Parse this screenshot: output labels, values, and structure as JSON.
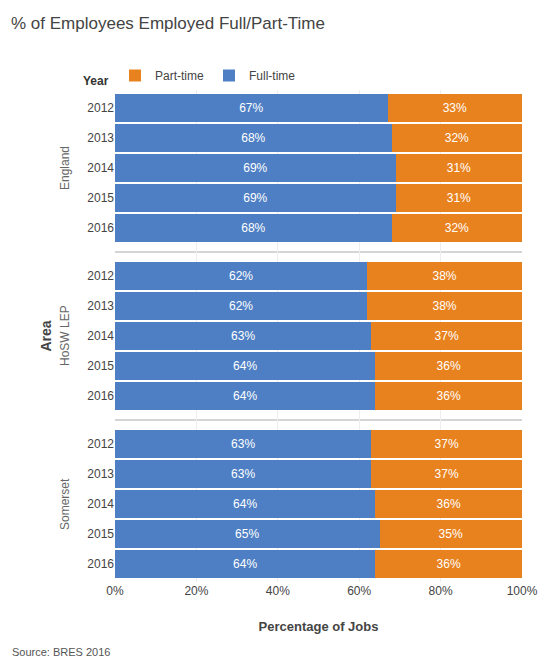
{
  "chart_data": {
    "type": "bar",
    "orientation": "horizontal",
    "stacked": true,
    "data_labels": true,
    "grid": true,
    "legend": "upper left",
    "title": "% of Employees Employed Full/Part-Time",
    "xlabel": "Percentage of Jobs",
    "ylabel": "Area",
    "annotations": [
      "Year",
      "Source: BRES 2016"
    ],
    "categories": [
      [
        "England",
        "2012"
      ],
      [
        "England",
        "2013"
      ],
      [
        "England",
        "2014"
      ],
      [
        "England",
        "2015"
      ],
      [
        "England",
        "2016"
      ],
      [
        "HoSW LEP",
        "2012"
      ],
      [
        "HoSW LEP",
        "2013"
      ],
      [
        "HoSW LEP",
        "2014"
      ],
      [
        "HoSW LEP",
        "2015"
      ],
      [
        "HoSW LEP",
        "2016"
      ],
      [
        "Somerset",
        "2012"
      ],
      [
        "Somerset",
        "2013"
      ],
      [
        "Somerset",
        "2014"
      ],
      [
        "Somerset",
        "2015"
      ],
      [
        "Somerset",
        "2016"
      ]
    ],
    "series": [
      {
        "name": "Full-time",
        "color": "#4e7fc4",
        "values": [
          67,
          68,
          69,
          69,
          68,
          62,
          62,
          63,
          64,
          64,
          63,
          63,
          64,
          65,
          64
        ],
        "value_labels": [
          "67%",
          "68%",
          "69%",
          "69%",
          "68%",
          "62%",
          "62%",
          "63%",
          "64%",
          "64%",
          "63%",
          "63%",
          "64%",
          "65%",
          "64%"
        ]
      },
      {
        "name": "Part-time",
        "color": "#e8821e",
        "values": [
          33,
          32,
          31,
          31,
          32,
          38,
          38,
          37,
          36,
          36,
          37,
          37,
          36,
          35,
          36
        ],
        "value_labels": [
          "33%",
          "32%",
          "31%",
          "31%",
          "32%",
          "38%",
          "38%",
          "37%",
          "36%",
          "36%",
          "37%",
          "37%",
          "36%",
          "35%",
          "36%"
        ]
      }
    ],
    "xlim": [
      0,
      100
    ],
    "xticks": [
      {
        "value": 0,
        "label": "0%"
      },
      {
        "value": 20,
        "label": "20%"
      },
      {
        "value": 40,
        "label": "40%"
      },
      {
        "value": 60,
        "label": "60%"
      },
      {
        "value": 80,
        "label": "80%"
      },
      {
        "value": 100,
        "label": "100%"
      }
    ]
  }
}
